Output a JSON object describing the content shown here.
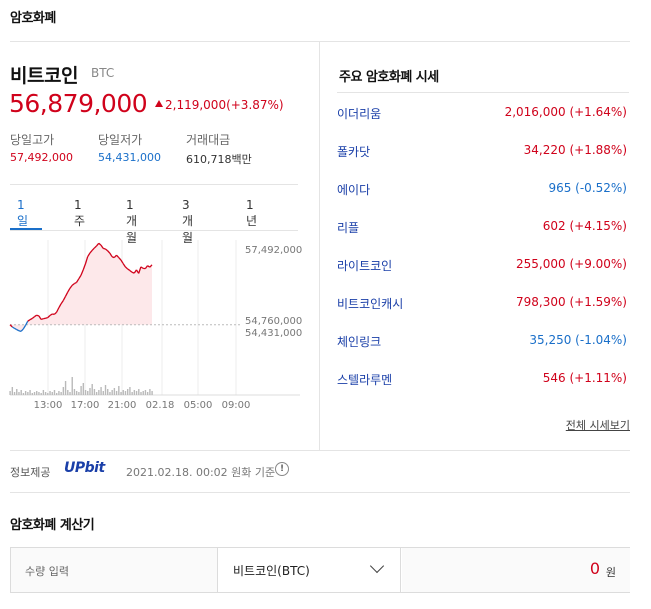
{
  "header": {
    "title": "암호화폐"
  },
  "coin": {
    "name": "비트코인",
    "ticker": "BTC",
    "price": "56,879,000",
    "change": "2,119,000(+3.87%)",
    "stats": [
      {
        "label": "당일고가",
        "value": "57,492,000"
      },
      {
        "label": "당일저가",
        "value": "54,431,000"
      },
      {
        "label": "거래대금",
        "value": "610,718백만"
      }
    ]
  },
  "periods": [
    "1일",
    "1주",
    "1개월",
    "3개월",
    "1년"
  ],
  "chart_data": {
    "type": "line",
    "title": "",
    "xlabel": "",
    "ylabel": "",
    "x_ticks": [
      "13:00",
      "17:00",
      "21:00",
      "02.18",
      "05:00",
      "09:00"
    ],
    "y_ticks": [
      "57,492,000",
      "54,760,000",
      "54,431,000"
    ],
    "ylim": [
      54250000,
      57600000
    ],
    "reference_line": 54760000,
    "series": [
      {
        "values": [
          54760000,
          54690000,
          54640000,
          54600000,
          54560000,
          54540000,
          54620000,
          54740000,
          54880000,
          54930000,
          54970000,
          55030000,
          55080000,
          55060000,
          54940000,
          54960000,
          54980000,
          55000000,
          55070000,
          55120000,
          55110000,
          55180000,
          55330000,
          55460000,
          55570000,
          55710000,
          55850000,
          55980000,
          56080000,
          56140000,
          56180000,
          56300000,
          56420000,
          56600000,
          56800000,
          57040000,
          57160000,
          57250000,
          57330000,
          57400000,
          57490000,
          57430000,
          57320000,
          57300000,
          57240000,
          57160000,
          57040000,
          57010000,
          57090000,
          57010000,
          56930000,
          56810000,
          56700000,
          56630000,
          56580000,
          56520000,
          56490000,
          56600000,
          56480000,
          56700000,
          56650000,
          56640000,
          56740000,
          56690000,
          56770000
        ]
      }
    ],
    "volume": [
      4,
      8,
      3,
      6,
      3,
      5,
      2,
      4,
      3,
      5,
      2,
      3,
      4,
      3,
      2,
      5,
      3,
      2,
      4,
      3,
      5,
      2,
      4,
      3,
      8,
      14,
      5,
      3,
      18,
      6,
      4,
      3,
      9,
      12,
      5,
      4,
      7,
      11,
      6,
      3,
      5,
      8,
      4,
      10,
      6,
      3,
      5,
      7,
      4,
      9,
      3,
      5,
      4,
      6,
      8,
      3,
      5,
      4,
      6,
      3,
      4,
      5,
      3,
      6,
      4
    ],
    "colors": {
      "up": "#d0021b",
      "down": "#1a6fc9",
      "fill": "#fde8ea"
    }
  },
  "provider": {
    "label": "정보제공",
    "logo": "UPbit",
    "time": "2021.02.18. 00:02 원화 기준"
  },
  "major": {
    "title": "주요 암호화폐 시세",
    "coins": [
      {
        "name": "이더리움",
        "value": "2,016,000 (+1.64%)",
        "dir": "up"
      },
      {
        "name": "폴카닷",
        "value": "34,220 (+1.88%)",
        "dir": "up"
      },
      {
        "name": "에이다",
        "value": "965 (-0.52%)",
        "dir": "down"
      },
      {
        "name": "리플",
        "value": "602 (+4.15%)",
        "dir": "up"
      },
      {
        "name": "라이트코인",
        "value": "255,000 (+9.00%)",
        "dir": "up"
      },
      {
        "name": "비트코인캐시",
        "value": "798,300 (+1.59%)",
        "dir": "up"
      },
      {
        "name": "체인링크",
        "value": "35,250 (-1.04%)",
        "dir": "down"
      },
      {
        "name": "스텔라루멘",
        "value": "546 (+1.11%)",
        "dir": "up"
      }
    ],
    "more": "전체 시세보기"
  },
  "calculator": {
    "title": "암호화폐 계산기",
    "placeholder": "수량 입력",
    "selected": "비트코인(BTC)",
    "result": "0",
    "unit": "원"
  }
}
